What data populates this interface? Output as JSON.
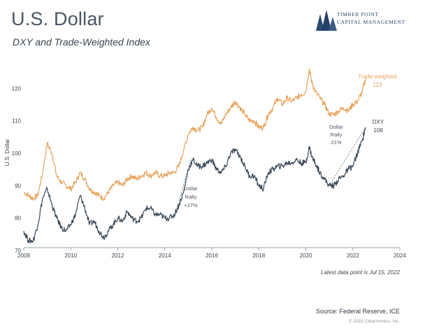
{
  "header": {
    "title": "U.S. Dollar",
    "subtitle": "DXY and Trade-Weighted Index"
  },
  "logo": {
    "line1": "TIMBER POINT",
    "line2": "CAPITAL MANAGEMENT",
    "icon": "pine-trees-icon"
  },
  "footer": {
    "note": "Latest data point is Jul 15, 2022",
    "source": "Source: Federal Reserve, ICE",
    "copyright": "© 2022 Clearnomics, Inc."
  },
  "colors": {
    "trade_weighted": "#E8A35C",
    "dxy": "#3A4856",
    "axis": "#9aa4ad",
    "annotation": "#4a5664"
  },
  "chart_data": {
    "type": "line",
    "title": "U.S. Dollar",
    "subtitle": "DXY and Trade-Weighted Index",
    "xlabel": "",
    "ylabel": "U.S. Dollar",
    "xlim": [
      2008,
      2024
    ],
    "ylim": [
      70,
      130
    ],
    "x_ticks": [
      "2008",
      "2010",
      "2012",
      "2014",
      "2016",
      "2018",
      "2020",
      "2022",
      "2024"
    ],
    "y_ticks": [
      "70",
      "80",
      "90",
      "100",
      "110",
      "120"
    ],
    "grid": false,
    "series": [
      {
        "name": "Trade-weighted",
        "end_label": "123",
        "x": [
          2008.0,
          2008.2,
          2008.4,
          2008.6,
          2008.8,
          2009.0,
          2009.2,
          2009.4,
          2009.6,
          2009.8,
          2010.0,
          2010.2,
          2010.4,
          2010.6,
          2010.8,
          2011.0,
          2011.2,
          2011.4,
          2011.6,
          2011.8,
          2012.0,
          2012.2,
          2012.4,
          2012.6,
          2012.8,
          2013.0,
          2013.2,
          2013.4,
          2013.6,
          2013.8,
          2014.0,
          2014.2,
          2014.4,
          2014.6,
          2014.8,
          2015.0,
          2015.2,
          2015.4,
          2015.6,
          2015.8,
          2016.0,
          2016.2,
          2016.4,
          2016.6,
          2016.8,
          2017.0,
          2017.2,
          2017.4,
          2017.6,
          2017.8,
          2018.0,
          2018.2,
          2018.4,
          2018.6,
          2018.8,
          2019.0,
          2019.2,
          2019.4,
          2019.6,
          2019.8,
          2020.0,
          2020.15,
          2020.25,
          2020.4,
          2020.6,
          2020.8,
          2021.0,
          2021.2,
          2021.4,
          2021.6,
          2021.8,
          2022.0,
          2022.2,
          2022.4,
          2022.54
        ],
        "y": [
          88,
          87,
          86,
          87,
          94,
          103,
          100,
          93,
          91,
          90,
          89,
          91,
          94,
          92,
          89,
          88,
          87,
          86,
          88,
          90,
          91,
          90,
          92,
          93,
          92,
          93,
          94,
          93,
          94,
          93,
          93,
          94,
          94,
          96,
          101,
          106,
          108,
          107,
          108,
          112,
          114,
          111,
          109,
          112,
          114,
          116,
          114,
          112,
          110,
          110,
          108,
          108,
          112,
          114,
          117,
          115,
          117,
          116,
          117,
          118,
          119,
          126,
          122,
          119,
          117,
          115,
          112,
          112,
          113,
          114,
          113,
          115,
          116,
          119,
          123
        ]
      },
      {
        "name": "DXY",
        "end_label": "108",
        "x": [
          2008.0,
          2008.2,
          2008.4,
          2008.6,
          2008.8,
          2009.0,
          2009.2,
          2009.4,
          2009.6,
          2009.8,
          2010.0,
          2010.2,
          2010.4,
          2010.6,
          2010.8,
          2011.0,
          2011.2,
          2011.4,
          2011.6,
          2011.8,
          2012.0,
          2012.2,
          2012.4,
          2012.6,
          2012.8,
          2013.0,
          2013.2,
          2013.4,
          2013.6,
          2013.8,
          2014.0,
          2014.2,
          2014.4,
          2014.6,
          2014.8,
          2015.0,
          2015.2,
          2015.4,
          2015.6,
          2015.8,
          2016.0,
          2016.2,
          2016.4,
          2016.6,
          2016.8,
          2017.0,
          2017.2,
          2017.4,
          2017.6,
          2017.8,
          2018.0,
          2018.2,
          2018.4,
          2018.6,
          2018.8,
          2019.0,
          2019.2,
          2019.4,
          2019.6,
          2019.8,
          2020.0,
          2020.15,
          2020.25,
          2020.4,
          2020.6,
          2020.8,
          2021.0,
          2021.2,
          2021.4,
          2021.6,
          2021.8,
          2022.0,
          2022.2,
          2022.4,
          2022.54
        ],
        "y": [
          76,
          73,
          73,
          78,
          86,
          89,
          84,
          80,
          77,
          76,
          78,
          81,
          87,
          83,
          78,
          79,
          76,
          74,
          76,
          78,
          80,
          79,
          82,
          80,
          79,
          80,
          83,
          83,
          81,
          81,
          80,
          80,
          81,
          84,
          88,
          95,
          98,
          96,
          96,
          97,
          98,
          95,
          94,
          96,
          100,
          101,
          99,
          96,
          93,
          93,
          90,
          89,
          94,
          95,
          96,
          96,
          97,
          97,
          98,
          97,
          97,
          102,
          99,
          97,
          94,
          92,
          90,
          90,
          92,
          93,
          95,
          96,
          100,
          104,
          108
        ]
      }
    ],
    "annotations": [
      {
        "id": "rally1",
        "lines": [
          "Dollar",
          "Rally",
          "+27%"
        ],
        "from": [
          2014.4,
          80
        ],
        "to": [
          2015.1,
          98
        ]
      },
      {
        "id": "rally2",
        "lines": [
          "Dollar",
          "Rally",
          "21%"
        ],
        "from": [
          2021.0,
          90
        ],
        "to": [
          2022.54,
          108
        ]
      }
    ]
  }
}
